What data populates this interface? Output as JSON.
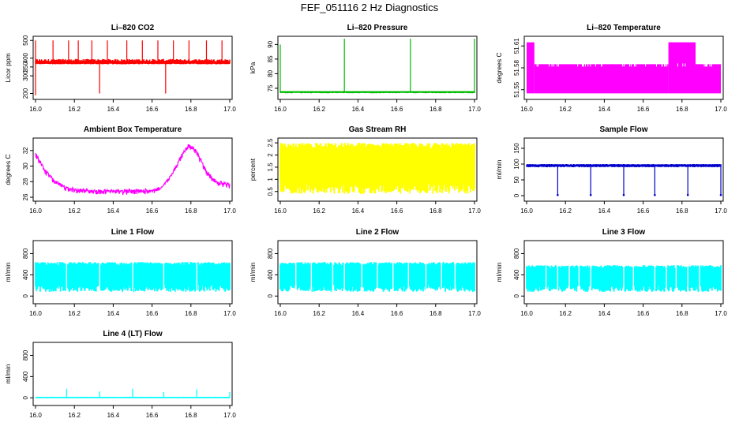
{
  "title": "FEF_051116  2 Hz Diagnostics",
  "chart_data": [
    {
      "type": "line",
      "title": "Li–820 CO2",
      "ylabel": "Licor ppm",
      "color": "#ff0000",
      "x_ticks": [
        "16.0",
        "16.2",
        "16.4",
        "16.6",
        "16.8",
        "17.0"
      ],
      "xlim": [
        16.0,
        17.0
      ],
      "y_ticks": [
        "200",
        "300",
        "350",
        "400",
        "500"
      ],
      "y_tick_values": [
        200,
        300,
        350,
        400,
        500
      ],
      "ylim": [
        180,
        510
      ],
      "baseline": [
        370,
        380
      ],
      "noise": [
        365,
        395
      ],
      "spikes": [
        {
          "x": 16.09,
          "y": 500
        },
        {
          "x": 16.17,
          "y": 500
        },
        {
          "x": 16.22,
          "y": 500
        },
        {
          "x": 16.29,
          "y": 500
        },
        {
          "x": 16.37,
          "y": 500
        },
        {
          "x": 16.47,
          "y": 500
        },
        {
          "x": 16.55,
          "y": 500
        },
        {
          "x": 16.63,
          "y": 500
        },
        {
          "x": 16.71,
          "y": 500
        },
        {
          "x": 16.79,
          "y": 500
        },
        {
          "x": 16.88,
          "y": 500
        },
        {
          "x": 16.96,
          "y": 500
        },
        {
          "x": 16.33,
          "y": 200
        },
        {
          "x": 16.67,
          "y": 200
        },
        {
          "x": 16.0,
          "y": 190
        },
        {
          "x": 16.0,
          "y": 500
        }
      ]
    },
    {
      "type": "line",
      "title": "Li–820 Pressure",
      "ylabel": "kPa",
      "color": "#00bb00",
      "x_ticks": [
        "16.0",
        "16.2",
        "16.4",
        "16.6",
        "16.8",
        "17.0"
      ],
      "xlim": [
        16.0,
        17.0
      ],
      "y_ticks": [
        "75",
        "80",
        "85",
        "90"
      ],
      "y_tick_values": [
        75,
        80,
        85,
        90
      ],
      "ylim": [
        72,
        92
      ],
      "baseline": [
        73.5,
        74.0
      ],
      "noise": [
        73.3,
        74.0
      ],
      "spikes": [
        {
          "x": 16.0,
          "y": 90
        },
        {
          "x": 16.33,
          "y": 92
        },
        {
          "x": 16.67,
          "y": 92
        },
        {
          "x": 17.0,
          "y": 92
        }
      ]
    },
    {
      "type": "line",
      "title": "Li–820 Temperature",
      "ylabel": "degrees C",
      "color": "#ff00ff",
      "x_ticks": [
        "16.0",
        "16.2",
        "16.4",
        "16.6",
        "16.8",
        "17.0"
      ],
      "xlim": [
        16.0,
        17.0
      ],
      "y_ticks": [
        "51.55",
        "51.58",
        "51.61"
      ],
      "y_tick_values": [
        51.55,
        51.58,
        51.61
      ],
      "ylim": [
        51.54,
        51.62
      ],
      "bands": [
        {
          "x0": 16.0,
          "x1": 16.04,
          "lo": 51.545,
          "hi": 51.615
        },
        {
          "x0": 16.04,
          "x1": 16.73,
          "lo": 51.545,
          "hi": 51.585
        },
        {
          "x0": 16.73,
          "x1": 16.87,
          "lo": 51.545,
          "hi": 51.615
        },
        {
          "x0": 16.87,
          "x1": 17.0,
          "lo": 51.545,
          "hi": 51.585
        }
      ]
    },
    {
      "type": "line",
      "title": "Ambient Box Temperature",
      "ylabel": "degrees C",
      "color": "#ff00ff",
      "x_ticks": [
        "16.0",
        "16.2",
        "16.4",
        "16.6",
        "16.8",
        "17.0"
      ],
      "xlim": [
        16.0,
        17.0
      ],
      "y_ticks": [
        "26",
        "28",
        "30",
        "32"
      ],
      "y_tick_values": [
        26,
        28,
        30,
        32
      ],
      "ylim": [
        25.8,
        33.3
      ],
      "curve": [
        [
          16.0,
          31.8
        ],
        [
          16.05,
          29.6
        ],
        [
          16.1,
          28.2
        ],
        [
          16.15,
          27.5
        ],
        [
          16.2,
          27.2
        ],
        [
          16.3,
          27.0
        ],
        [
          16.4,
          27.0
        ],
        [
          16.5,
          27.0
        ],
        [
          16.6,
          27.1
        ],
        [
          16.65,
          27.4
        ],
        [
          16.7,
          29.0
        ],
        [
          16.75,
          31.5
        ],
        [
          16.79,
          33.0
        ],
        [
          16.83,
          32.0
        ],
        [
          16.88,
          29.5
        ],
        [
          16.93,
          28.2
        ],
        [
          17.0,
          27.8
        ]
      ],
      "noise_amp": 0.7
    },
    {
      "type": "line",
      "title": "Gas Stream RH",
      "ylabel": "percent",
      "color": "#ffff00",
      "x_ticks": [
        "16.0",
        "16.2",
        "16.4",
        "16.6",
        "16.8",
        "17.0"
      ],
      "xlim": [
        16.0,
        17.0
      ],
      "y_ticks": [
        "0.5",
        "1",
        "1.5",
        "2",
        "2.5"
      ],
      "y_tick_values": [
        0.5,
        1,
        1.5,
        2,
        2.5
      ],
      "ylim": [
        0.2,
        2.6
      ],
      "noise": [
        0.4,
        2.5
      ]
    },
    {
      "type": "line",
      "title": "Sample Flow",
      "ylabel": "ml/min",
      "color": "#0000cc",
      "x_ticks": [
        "16.0",
        "16.2",
        "16.4",
        "16.6",
        "16.8",
        "17.0"
      ],
      "xlim": [
        16.0,
        17.0
      ],
      "y_ticks": [
        "0",
        "50",
        "100",
        "150"
      ],
      "y_tick_values": [
        0,
        50,
        100,
        150
      ],
      "ylim": [
        -10,
        175
      ],
      "baseline": [
        93,
        98
      ],
      "noise": [
        90,
        100
      ],
      "dips": [
        16.16,
        16.33,
        16.5,
        16.66,
        16.83,
        17.0
      ],
      "dip_y": 2
    },
    {
      "type": "line",
      "title": "Line 1 Flow",
      "ylabel": "ml/min",
      "color": "#00ffff",
      "x_ticks": [
        "16.0",
        "16.2",
        "16.4",
        "16.6",
        "16.8",
        "17.0"
      ],
      "xlim": [
        16.0,
        17.0
      ],
      "y_ticks": [
        "0",
        "400",
        "800"
      ],
      "y_tick_values": [
        0,
        400,
        800
      ],
      "ylim": [
        -100,
        1000
      ],
      "noise": [
        80,
        640
      ],
      "gaps": [
        16.16,
        16.33,
        16.5,
        16.66,
        16.83
      ]
    },
    {
      "type": "line",
      "title": "Line 2 Flow",
      "ylabel": "ml/min",
      "color": "#00ffff",
      "x_ticks": [
        "16.0",
        "16.2",
        "16.4",
        "16.6",
        "16.8",
        "17.0"
      ],
      "xlim": [
        16.0,
        17.0
      ],
      "y_ticks": [
        "0",
        "400",
        "800"
      ],
      "y_tick_values": [
        0,
        400,
        800
      ],
      "ylim": [
        -100,
        1000
      ],
      "noise": [
        80,
        640
      ],
      "gaps": [
        16.08,
        16.16,
        16.27,
        16.33,
        16.42,
        16.5,
        16.58,
        16.66,
        16.75,
        16.83,
        16.9
      ]
    },
    {
      "type": "line",
      "title": "Line 3 Flow",
      "ylabel": "ml/min",
      "color": "#00ffff",
      "x_ticks": [
        "16.0",
        "16.2",
        "16.4",
        "16.6",
        "16.8",
        "17.0"
      ],
      "xlim": [
        16.0,
        17.0
      ],
      "y_ticks": [
        "0",
        "400",
        "800"
      ],
      "y_tick_values": [
        0,
        400,
        800
      ],
      "ylim": [
        -100,
        1000
      ],
      "noise": [
        80,
        580
      ],
      "gaps": [
        16.1,
        16.16,
        16.22,
        16.27,
        16.33,
        16.5,
        16.55,
        16.66,
        16.72,
        16.77,
        16.83,
        16.89
      ]
    },
    {
      "type": "line",
      "title": "Line 4 (LT) Flow",
      "ylabel": "ml/min",
      "color": "#00ffff",
      "x_ticks": [
        "16.0",
        "16.2",
        "16.4",
        "16.6",
        "16.8",
        "17.0"
      ],
      "xlim": [
        16.0,
        17.0
      ],
      "y_ticks": [
        "0",
        "400",
        "800"
      ],
      "y_tick_values": [
        0,
        400,
        800
      ],
      "ylim": [
        -100,
        1000
      ],
      "baseline": [
        5,
        15
      ],
      "noise": [
        0,
        20
      ],
      "spikes": [
        {
          "x": 16.16,
          "y": 170
        },
        {
          "x": 16.33,
          "y": 120
        },
        {
          "x": 16.5,
          "y": 170
        },
        {
          "x": 16.66,
          "y": 110
        },
        {
          "x": 16.83,
          "y": 160
        },
        {
          "x": 17.0,
          "y": 110
        }
      ]
    }
  ]
}
